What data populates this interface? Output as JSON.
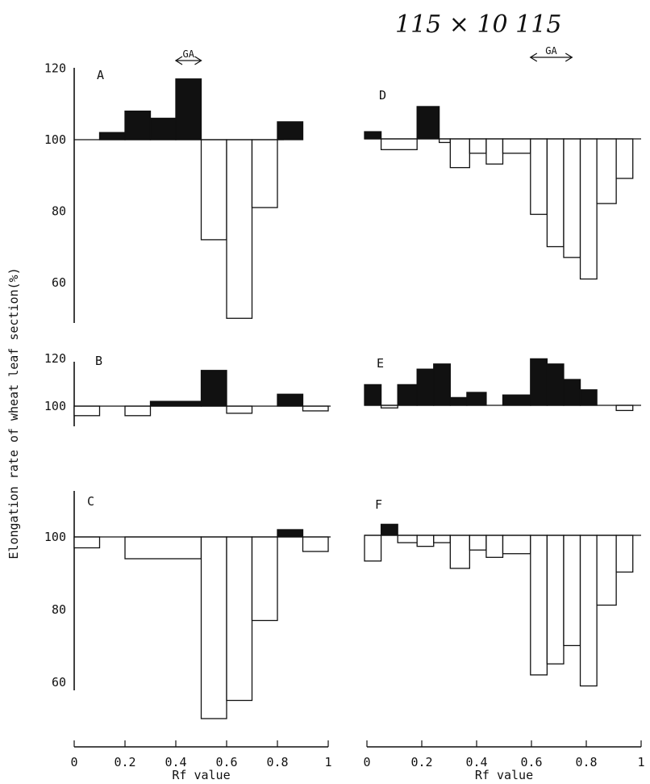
{
  "handwritten_note": "115 × 10   115",
  "ga_marker_label": "GA",
  "ylabel": "Elongation rate of wheat leaf section(%)",
  "xlabel": "Rf value",
  "chart_data": [
    {
      "type": "bar",
      "panel": "A",
      "baseline": 100,
      "ylim": [
        50,
        120
      ],
      "yticks": [
        60,
        80,
        100,
        120
      ],
      "ga_range": [
        0.4,
        0.5
      ],
      "bins": [
        [
          0.1,
          0.2,
          102
        ],
        [
          0.2,
          0.3,
          108
        ],
        [
          0.3,
          0.4,
          106
        ],
        [
          0.4,
          0.5,
          117
        ],
        [
          0.5,
          0.6,
          72
        ],
        [
          0.6,
          0.7,
          50
        ],
        [
          0.7,
          0.8,
          81
        ],
        [
          0.8,
          0.9,
          105
        ]
      ]
    },
    {
      "type": "bar",
      "panel": "B",
      "baseline": 100,
      "ylim": [
        95,
        120
      ],
      "yticks": [
        100,
        120
      ],
      "bins": [
        [
          0.0,
          0.1,
          96
        ],
        [
          0.2,
          0.3,
          96
        ],
        [
          0.3,
          0.5,
          102
        ],
        [
          0.5,
          0.6,
          115
        ],
        [
          0.6,
          0.7,
          97
        ],
        [
          0.8,
          0.9,
          105
        ],
        [
          0.9,
          1.0,
          98
        ]
      ]
    },
    {
      "type": "bar",
      "panel": "C",
      "baseline": 100,
      "ylim": [
        50,
        110
      ],
      "yticks": [
        60,
        80,
        100
      ],
      "bins": [
        [
          0.0,
          0.1,
          97
        ],
        [
          0.1,
          0.2,
          100
        ],
        [
          0.2,
          0.5,
          94
        ],
        [
          0.5,
          0.6,
          50
        ],
        [
          0.6,
          0.7,
          55
        ],
        [
          0.7,
          0.8,
          77
        ],
        [
          0.8,
          0.9,
          102
        ],
        [
          0.9,
          1.0,
          96
        ]
      ]
    },
    {
      "type": "bar",
      "panel": "D",
      "baseline": 100,
      "ylim": [
        50,
        120
      ],
      "yticks": [],
      "ga_range": [
        0.6,
        0.75
      ],
      "bins": [
        [
          0.0,
          0.06,
          102
        ],
        [
          0.06,
          0.19,
          97
        ],
        [
          0.19,
          0.27,
          109
        ],
        [
          0.27,
          0.31,
          99
        ],
        [
          0.31,
          0.38,
          92
        ],
        [
          0.38,
          0.44,
          96
        ],
        [
          0.44,
          0.5,
          93
        ],
        [
          0.5,
          0.6,
          96
        ],
        [
          0.6,
          0.66,
          79
        ],
        [
          0.66,
          0.72,
          70
        ],
        [
          0.72,
          0.78,
          67
        ],
        [
          0.78,
          0.84,
          61
        ],
        [
          0.84,
          0.91,
          82
        ],
        [
          0.91,
          0.97,
          89
        ]
      ]
    },
    {
      "type": "bar",
      "panel": "E",
      "baseline": 100,
      "ylim": [
        95,
        120
      ],
      "yticks": [],
      "bins": [
        [
          0.0,
          0.06,
          108
        ],
        [
          0.06,
          0.12,
          99
        ],
        [
          0.12,
          0.19,
          108
        ],
        [
          0.19,
          0.25,
          114
        ],
        [
          0.25,
          0.31,
          116
        ],
        [
          0.31,
          0.37,
          103
        ],
        [
          0.37,
          0.44,
          105
        ],
        [
          0.5,
          0.6,
          104
        ],
        [
          0.6,
          0.66,
          118
        ],
        [
          0.66,
          0.72,
          116
        ],
        [
          0.72,
          0.78,
          110
        ],
        [
          0.78,
          0.84,
          106
        ],
        [
          0.91,
          0.97,
          98
        ]
      ]
    },
    {
      "type": "bar",
      "panel": "F",
      "baseline": 100,
      "ylim": [
        50,
        110
      ],
      "yticks": [],
      "bins": [
        [
          0.0,
          0.06,
          93
        ],
        [
          0.06,
          0.12,
          103
        ],
        [
          0.12,
          0.19,
          98
        ],
        [
          0.19,
          0.25,
          97
        ],
        [
          0.25,
          0.31,
          98
        ],
        [
          0.31,
          0.38,
          91
        ],
        [
          0.38,
          0.44,
          96
        ],
        [
          0.44,
          0.5,
          94
        ],
        [
          0.5,
          0.6,
          95
        ],
        [
          0.6,
          0.66,
          62
        ],
        [
          0.66,
          0.72,
          65
        ],
        [
          0.72,
          0.78,
          70
        ],
        [
          0.78,
          0.84,
          59
        ],
        [
          0.84,
          0.91,
          81
        ],
        [
          0.91,
          0.97,
          90
        ]
      ]
    }
  ],
  "x_axes": [
    {
      "id": "left",
      "ticks": [
        "0",
        "0.2",
        "0.4",
        "0.6",
        "0.8",
        "1"
      ]
    },
    {
      "id": "right",
      "ticks": [
        "0",
        "0.2",
        "0.4",
        "0.6",
        "0.8",
        "1"
      ]
    }
  ]
}
